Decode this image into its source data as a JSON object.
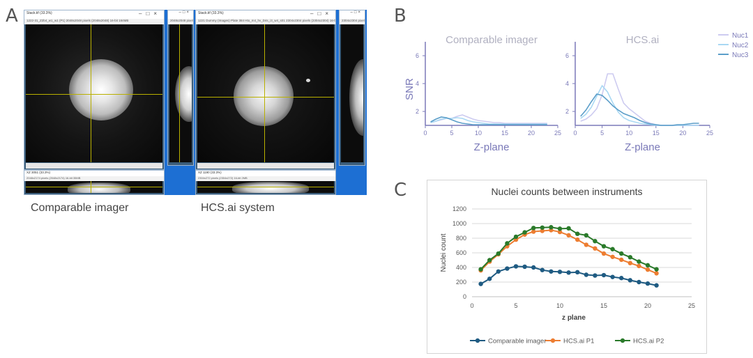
{
  "panels": {
    "a": "A",
    "b": "B",
    "c": "C"
  },
  "panel_a": {
    "caption_left": "Comparable imager",
    "caption_right": "HCS.ai system",
    "left_window": {
      "title": "Stack.tif (33.3%)",
      "info": "1222-31_Z2b4_w1_w1 (P1) 2048x2048 pixels (2048x2048) 16-bit 184MB",
      "side_info": "2048x2048 pixels (2048)",
      "bottom_title": "XZ 3051 (33.3%)",
      "bottom_info": "2048x2174 pixels (2048x2174) 16-bit 35MB"
    },
    "right_window": {
      "title": "Stack.tif (33.3%)",
      "info": "1221 Dummy (Images) Plate 384 Hto_m4_hv_D4s_i3_w4_s01 2304x2304 pixels (2304x2304) 16-bit 212MB",
      "side_info": "2304x2304 pixels (2304)",
      "bottom_title": "XZ 1190 (33.3%)",
      "bottom_info": "2304x272 pixels (2304x272) 16-bit 2MB"
    }
  },
  "panel_b": {
    "chart_data": [
      {
        "type": "line",
        "title": "Comparable imager",
        "xlabel": "Z-plane",
        "ylabel": "SNR",
        "xlim": [
          0,
          25
        ],
        "ylim": [
          1,
          7
        ],
        "xticks": [
          "0",
          "5",
          "10",
          "15",
          "20",
          "25"
        ],
        "yticks": [
          "2",
          "4",
          "6"
        ],
        "series": [
          {
            "name": "Nuc1",
            "color": "#cdcbf0",
            "x": [
              1,
              2,
              3,
              4,
              5,
              6,
              7,
              8,
              9,
              10,
              11,
              12,
              13,
              14,
              15,
              16,
              17,
              18,
              19,
              20,
              21,
              22,
              23
            ],
            "y": [
              1.2,
              1.3,
              1.4,
              1.5,
              1.5,
              1.65,
              1.75,
              1.6,
              1.45,
              1.35,
              1.3,
              1.25,
              1.2,
              1.2,
              1.15,
              1.15,
              1.15,
              1.15,
              1.15,
              1.15,
              1.15,
              1.15,
              1.15
            ]
          },
          {
            "name": "Nuc2",
            "color": "#a9d8f3",
            "x": [
              1,
              2,
              3,
              4,
              5,
              6,
              7,
              8,
              9,
              10,
              11,
              12,
              13,
              14,
              15,
              16,
              17,
              18,
              19,
              20,
              21,
              22,
              23
            ],
            "y": [
              1.2,
              1.3,
              1.45,
              1.5,
              1.5,
              1.55,
              1.5,
              1.35,
              1.25,
              1.2,
              1.15,
              1.1,
              1.1,
              1.1,
              1.1,
              1.1,
              1.1,
              1.1,
              1.1,
              1.1,
              1.1,
              1.1,
              1.1
            ]
          },
          {
            "name": "Nuc3",
            "color": "#5b9ec9",
            "x": [
              1,
              2,
              3,
              4,
              5,
              6,
              7,
              8,
              9,
              10,
              11,
              12,
              13,
              14,
              15,
              16,
              17,
              18,
              19,
              20,
              21,
              22,
              23
            ],
            "y": [
              1.25,
              1.45,
              1.6,
              1.55,
              1.4,
              1.25,
              1.15,
              1.1,
              1.05,
              1.05,
              1.05,
              1.05,
              1.05,
              1.05,
              1.05,
              1.05,
              1.05,
              1.05,
              1.05,
              1.05,
              1.05,
              1.05,
              1.05
            ]
          }
        ]
      },
      {
        "type": "line",
        "title": "HCS.ai",
        "xlabel": "Z-plane",
        "ylabel": "",
        "xlim": [
          0,
          25
        ],
        "ylim": [
          1,
          7
        ],
        "xticks": [
          "0",
          "5",
          "10",
          "15",
          "20",
          "25"
        ],
        "yticks": [
          "2",
          "4",
          "6"
        ],
        "legend": [
          "Nuc1",
          "Nuc2",
          "Nuc3"
        ],
        "series": [
          {
            "name": "Nuc1",
            "color": "#cdcbf0",
            "x": [
              1,
              2,
              3,
              4,
              5,
              6,
              7,
              8,
              9,
              10,
              11,
              12,
              13,
              14,
              15,
              16,
              17,
              18,
              19,
              20,
              21,
              22,
              23
            ],
            "y": [
              1.3,
              1.45,
              1.75,
              2.2,
              3.2,
              4.7,
              4.7,
              3.6,
              2.6,
              2.2,
              1.9,
              1.6,
              1.3,
              1.15,
              1.05,
              1.0,
              1.0,
              1.0,
              1.0,
              1.0,
              1.0,
              1.0,
              1.0
            ]
          },
          {
            "name": "Nuc2",
            "color": "#a9d8f3",
            "x": [
              1,
              2,
              3,
              4,
              5,
              6,
              7,
              8,
              9,
              10,
              11,
              12,
              13,
              14,
              15,
              16,
              17,
              18,
              19,
              20,
              21,
              22,
              23
            ],
            "y": [
              1.5,
              1.8,
              2.3,
              3.1,
              3.85,
              3.4,
              2.6,
              1.95,
              1.55,
              1.35,
              1.25,
              1.15,
              1.1,
              1.05,
              1.0,
              1.0,
              1.0,
              1.0,
              1.0,
              1.0,
              1.0,
              1.0,
              1.0
            ]
          },
          {
            "name": "Nuc3",
            "color": "#5b9ec9",
            "x": [
              1,
              2,
              3,
              4,
              5,
              6,
              7,
              8,
              9,
              10,
              11,
              12,
              13,
              14,
              15,
              16,
              17,
              18,
              19,
              20,
              21,
              22,
              23
            ],
            "y": [
              1.65,
              2.1,
              2.7,
              3.25,
              3.15,
              2.8,
              2.4,
              2.1,
              1.85,
              1.7,
              1.55,
              1.35,
              1.2,
              1.1,
              1.05,
              1.0,
              1.0,
              1.0,
              1.05,
              1.05,
              1.1,
              1.15,
              1.15
            ]
          }
        ]
      }
    ]
  },
  "panel_c": {
    "chart_data": {
      "type": "line",
      "title": "Nuclei counts between instruments",
      "xlabel": "z plane",
      "ylabel": "Nuclei count",
      "xlim": [
        0,
        25
      ],
      "ylim": [
        0,
        1200
      ],
      "xticks": [
        "0",
        "5",
        "10",
        "15",
        "20",
        "25"
      ],
      "yticks": [
        "0",
        "200",
        "400",
        "600",
        "800",
        "1000",
        "1200"
      ],
      "grid": true,
      "legend_position": "bottom",
      "x": [
        1,
        2,
        3,
        4,
        5,
        6,
        7,
        8,
        9,
        10,
        11,
        12,
        13,
        14,
        15,
        16,
        17,
        18,
        19,
        20,
        21
      ],
      "series": [
        {
          "name": "Comparable imager",
          "color": "#1f5b82",
          "values": [
            175,
            245,
            345,
            385,
            415,
            410,
            400,
            365,
            345,
            340,
            330,
            335,
            300,
            290,
            295,
            270,
            255,
            225,
            200,
            180,
            155
          ]
        },
        {
          "name": "HCS.ai P1",
          "color": "#ed7d31",
          "values": [
            360,
            480,
            580,
            690,
            780,
            850,
            890,
            900,
            910,
            885,
            840,
            780,
            710,
            660,
            590,
            545,
            505,
            460,
            420,
            370,
            320
          ]
        },
        {
          "name": "HCS.ai P2",
          "color": "#2a7a2a",
          "values": [
            375,
            500,
            590,
            730,
            820,
            880,
            940,
            945,
            950,
            930,
            935,
            860,
            840,
            760,
            690,
            650,
            590,
            540,
            480,
            430,
            375
          ]
        }
      ]
    }
  }
}
